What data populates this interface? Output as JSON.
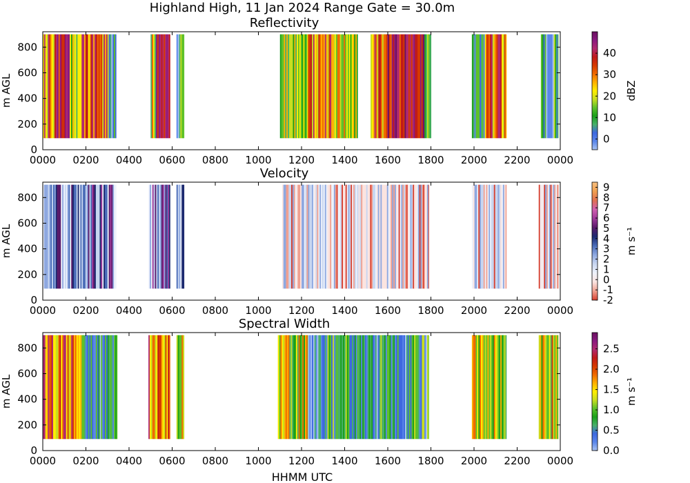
{
  "figure": {
    "suptitle": "Highland High, 11 Jan 2024 Range Gate = 30.0m",
    "xlabel": "HHMM UTC"
  },
  "chart_data": [
    {
      "type": "heatmap",
      "title": "Reflectivity",
      "xlabel": "",
      "ylabel": "m AGL",
      "xlim": [
        0,
        24
      ],
      "ylim": [
        0,
        920
      ],
      "x_ticks": [
        "0000",
        "0200",
        "0400",
        "0600",
        "0800",
        "1000",
        "1200",
        "1400",
        "1600",
        "1800",
        "2000",
        "2200",
        "0000"
      ],
      "y_ticks": [
        0,
        200,
        400,
        600,
        800
      ],
      "grid": false,
      "colorbar": {
        "label": "dBZ",
        "range": [
          -5,
          50
        ],
        "ticks": [
          0,
          10,
          20,
          30,
          40
        ],
        "colors": [
          "#a8c2f2",
          "#5a86ea",
          "#3e68e0",
          "#48b06a",
          "#1aa01a",
          "#5ec12a",
          "#c8de20",
          "#ffee00",
          "#ffb000",
          "#f06a00",
          "#d63a00",
          "#c01a1a",
          "#b02a70",
          "#8a1a80",
          "#6a1060"
        ]
      },
      "echo_spans_hours": [
        {
          "start": 0.0,
          "end": 0.55,
          "intensity": "high"
        },
        {
          "start": 0.55,
          "end": 1.25,
          "intensity": "very-high"
        },
        {
          "start": 1.25,
          "end": 1.8,
          "intensity": "medium"
        },
        {
          "start": 1.8,
          "end": 3.0,
          "intensity": "high"
        },
        {
          "start": 3.0,
          "end": 3.4,
          "intensity": "low"
        },
        {
          "start": 5.0,
          "end": 5.25,
          "intensity": "medium"
        },
        {
          "start": 5.25,
          "end": 5.9,
          "intensity": "very-high"
        },
        {
          "start": 6.2,
          "end": 6.55,
          "intensity": "low"
        },
        {
          "start": 11.0,
          "end": 12.3,
          "intensity": "medium"
        },
        {
          "start": 12.3,
          "end": 13.6,
          "intensity": "high"
        },
        {
          "start": 13.6,
          "end": 14.6,
          "intensity": "medium"
        },
        {
          "start": 15.2,
          "end": 16.0,
          "intensity": "high"
        },
        {
          "start": 16.0,
          "end": 17.7,
          "intensity": "very-high"
        },
        {
          "start": 17.7,
          "end": 18.0,
          "intensity": "low"
        },
        {
          "start": 19.9,
          "end": 20.5,
          "intensity": "low"
        },
        {
          "start": 20.5,
          "end": 21.5,
          "intensity": "high"
        },
        {
          "start": 23.1,
          "end": 23.9,
          "intensity": "low"
        }
      ]
    },
    {
      "type": "heatmap",
      "title": "Velocity",
      "xlabel": "",
      "ylabel": "m AGL",
      "xlim": [
        0,
        24
      ],
      "ylim": [
        0,
        920
      ],
      "x_ticks": [
        "0000",
        "0200",
        "0400",
        "0600",
        "0800",
        "1000",
        "1200",
        "1400",
        "1600",
        "1800",
        "2000",
        "2200",
        "0000"
      ],
      "y_ticks": [
        0,
        200,
        400,
        600,
        800
      ],
      "grid": false,
      "colorbar": {
        "label": "m s⁻¹",
        "range": [
          -2,
          9.5
        ],
        "ticks": [
          -2,
          -1,
          0,
          1,
          2,
          3,
          4,
          5,
          6,
          7,
          8,
          9
        ],
        "colors": [
          "#d84030",
          "#f0a090",
          "#fbe4e0",
          "#eef2fb",
          "#c8d6f0",
          "#8ea8e0",
          "#4a6cb8",
          "#1c2a70",
          "#5a1a6a",
          "#a03a9a",
          "#d060b0",
          "#e07050",
          "#f0a050",
          "#f8c080"
        ]
      },
      "echo_spans_hours": [
        {
          "start": 0.0,
          "end": 3.4,
          "intensity": "medium"
        },
        {
          "start": 4.9,
          "end": 5.9,
          "intensity": "medium"
        },
        {
          "start": 6.2,
          "end": 6.55,
          "intensity": "medium"
        },
        {
          "start": 11.1,
          "end": 17.9,
          "intensity": "low"
        },
        {
          "start": 19.9,
          "end": 21.5,
          "intensity": "low"
        },
        {
          "start": 23.0,
          "end": 23.9,
          "intensity": "low"
        }
      ]
    },
    {
      "type": "heatmap",
      "title": "Spectral Width",
      "xlabel": "HHMM UTC",
      "ylabel": "m AGL",
      "xlim": [
        0,
        24
      ],
      "ylim": [
        0,
        920
      ],
      "x_ticks": [
        "0000",
        "0200",
        "0400",
        "0600",
        "0800",
        "1000",
        "1200",
        "1400",
        "1600",
        "1800",
        "2000",
        "2200",
        "0000"
      ],
      "y_ticks": [
        0,
        200,
        400,
        600,
        800
      ],
      "grid": false,
      "colorbar": {
        "label": "m s⁻¹",
        "range": [
          0,
          2.9
        ],
        "ticks": [
          "0.0",
          "0.5",
          "1.0",
          "1.5",
          "2.0",
          "2.5"
        ],
        "colors": [
          "#a8c2f2",
          "#5a86ea",
          "#3e68e0",
          "#48b06a",
          "#1aa01a",
          "#5ec12a",
          "#c8de20",
          "#ffee00",
          "#ffb000",
          "#f06a00",
          "#d63a00",
          "#c01a1a",
          "#b02a70",
          "#8a1a80",
          "#6a1060"
        ]
      },
      "echo_spans_hours": [
        {
          "start": 0.0,
          "end": 1.8,
          "intensity": "high"
        },
        {
          "start": 1.8,
          "end": 3.45,
          "intensity": "low"
        },
        {
          "start": 4.9,
          "end": 5.9,
          "intensity": "high"
        },
        {
          "start": 6.2,
          "end": 6.55,
          "intensity": "medium"
        },
        {
          "start": 10.9,
          "end": 12.3,
          "intensity": "medium"
        },
        {
          "start": 12.3,
          "end": 17.9,
          "intensity": "low"
        },
        {
          "start": 19.9,
          "end": 21.5,
          "intensity": "medium"
        },
        {
          "start": 23.0,
          "end": 23.9,
          "intensity": "medium"
        }
      ]
    }
  ]
}
